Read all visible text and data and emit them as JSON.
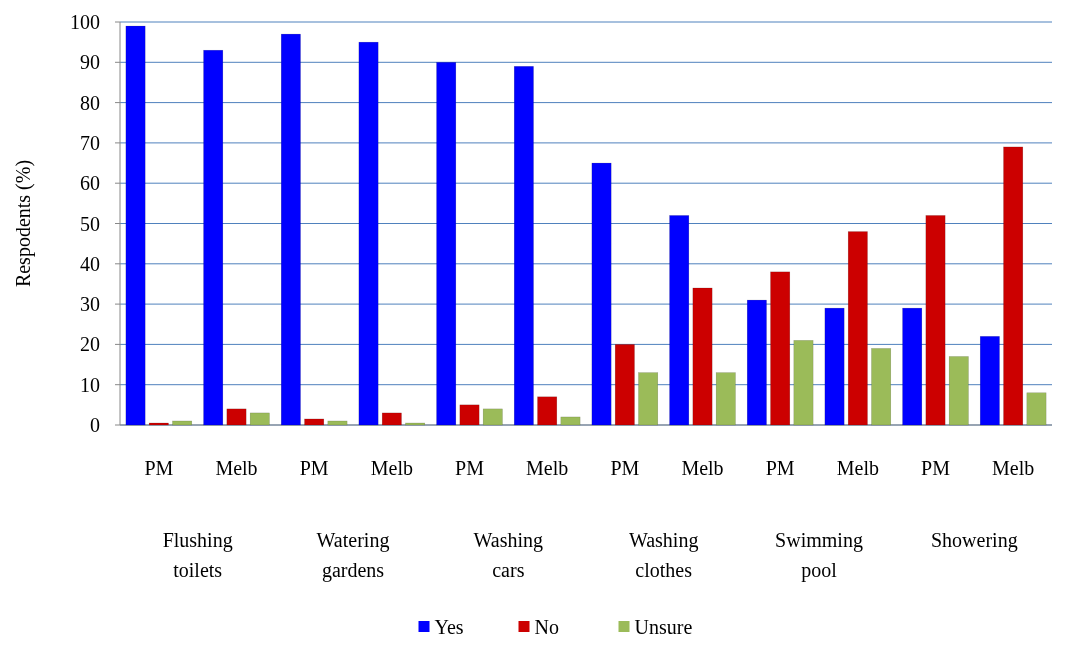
{
  "chart_data": {
    "type": "bar",
    "ylabel": "Respodents (%)",
    "categories": [
      "PM",
      "Melb",
      "PM",
      "Melb",
      "PM",
      "Melb",
      "PM",
      "Melb",
      "PM",
      "Melb",
      "PM",
      "Melb"
    ],
    "series": [
      {
        "name": "Yes",
        "color": "#0000ff",
        "values": [
          99,
          93,
          97,
          95,
          90,
          89,
          65,
          52,
          31,
          29,
          29,
          22
        ]
      },
      {
        "name": "No",
        "color": "#cc0000",
        "values": [
          0.5,
          4,
          1.5,
          3,
          5,
          7,
          20,
          34,
          38,
          48,
          52,
          69
        ]
      },
      {
        "name": "Unsure",
        "color": "#9bbb59",
        "values": [
          1,
          3,
          1,
          0.5,
          4,
          2,
          13,
          13,
          21,
          19,
          17,
          8
        ]
      }
    ],
    "annotations": [
      "Flushing toilets",
      "Watering gardens",
      "Washing cars",
      "Washing clothes",
      "Swimming pool",
      "Showering"
    ],
    "ylim": [
      0,
      100
    ],
    "yticks": [
      0,
      10,
      20,
      30,
      40,
      50,
      60,
      70,
      80,
      90,
      100
    ],
    "grid": "y",
    "legend": "bottom"
  }
}
